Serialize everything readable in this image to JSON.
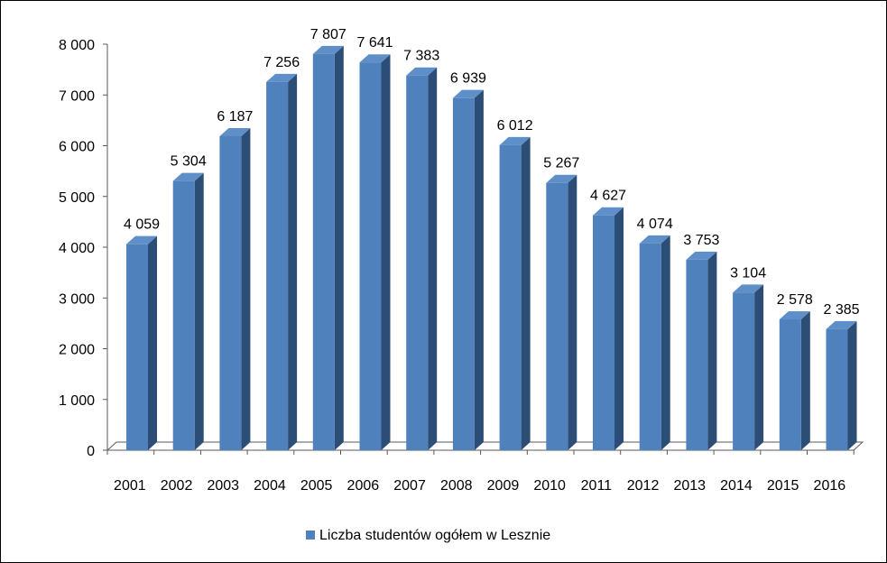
{
  "chart_data": {
    "type": "bar",
    "style": "3d-column",
    "categories": [
      "2001",
      "2002",
      "2003",
      "2004",
      "2005",
      "2006",
      "2007",
      "2008",
      "2009",
      "2010",
      "2011",
      "2012",
      "2013",
      "2014",
      "2015",
      "2016"
    ],
    "series": [
      {
        "name": "Liczba studentów ogółem w Lesznie",
        "values": [
          4059,
          5304,
          6187,
          7256,
          7807,
          7641,
          7383,
          6939,
          6012,
          5267,
          4627,
          4074,
          3753,
          3104,
          2578,
          2385
        ],
        "value_labels": [
          "4 059",
          "5 304",
          "6 187",
          "7 256",
          "7 807",
          "7 641",
          "7 383",
          "6 939",
          "6 012",
          "5 267",
          "4 627",
          "4 074",
          "3 753",
          "3 104",
          "2 578",
          "2 385"
        ]
      }
    ],
    "y_ticks": [
      0,
      1000,
      2000,
      3000,
      4000,
      5000,
      6000,
      7000,
      8000
    ],
    "y_tick_labels": [
      "0",
      "1 000",
      "2 000",
      "3 000",
      "4 000",
      "5 000",
      "6 000",
      "7 000",
      "8 000"
    ],
    "ylim": [
      0,
      8000
    ],
    "title": "",
    "xlabel": "",
    "ylabel": "",
    "grid": false,
    "legend_position": "bottom",
    "colors": {
      "bar_front": "#4f81bd",
      "bar_side": "#2c4d75",
      "bar_top": "#5f8fc8",
      "axis": "#595959"
    }
  }
}
